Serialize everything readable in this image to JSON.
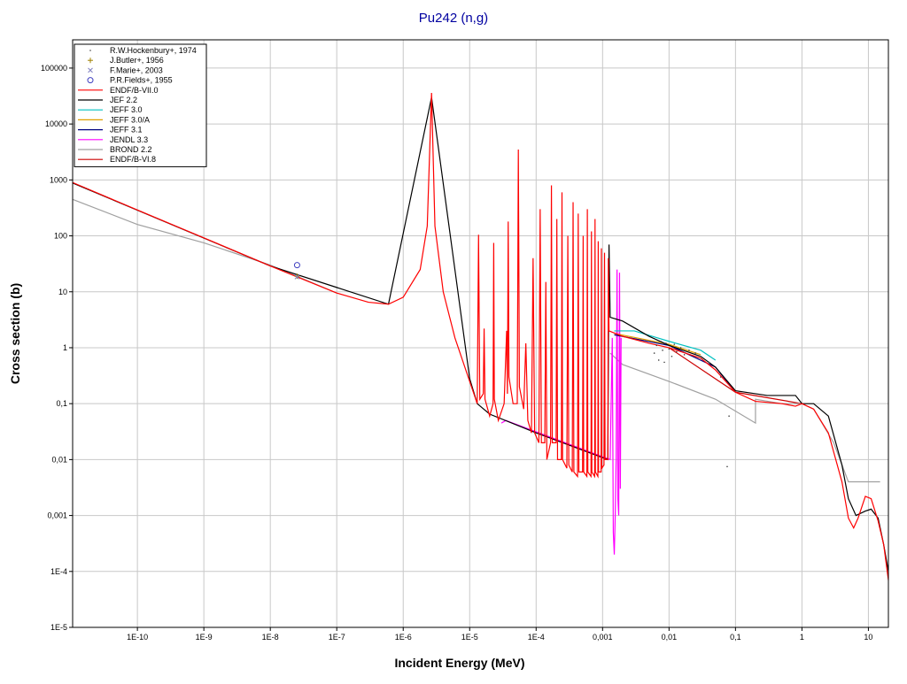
{
  "chart_data": {
    "type": "line",
    "title": "Pu242 (n,g)",
    "x_label": "Incident Energy (MeV)",
    "y_label": "Cross section (b)",
    "log_x": true,
    "log_y": true,
    "grid": true,
    "xlim": [
      1.06e-11,
      20
    ],
    "ylim": [
      1e-05,
      320000
    ],
    "xticks": [
      {
        "value": 1e-10,
        "label": "1E-10"
      },
      {
        "value": 1e-09,
        "label": "1E-9"
      },
      {
        "value": 1e-08,
        "label": "1E-8"
      },
      {
        "value": 1e-07,
        "label": "1E-7"
      },
      {
        "value": 1e-06,
        "label": "1E-6"
      },
      {
        "value": 1e-05,
        "label": "1E-5"
      },
      {
        "value": 0.0001,
        "label": "1E-4"
      },
      {
        "value": 0.001,
        "label": "0,001"
      },
      {
        "value": 0.01,
        "label": "0,01"
      },
      {
        "value": 0.1,
        "label": "0,1"
      },
      1,
      10
    ],
    "yticks": [
      {
        "value": 1e-05,
        "label": "1E-5"
      },
      {
        "value": 0.0001,
        "label": "1E-4"
      },
      {
        "value": 0.001,
        "label": "0,001"
      },
      {
        "value": 0.01,
        "label": "0,01"
      },
      {
        "value": 0.1,
        "label": "0,1"
      },
      1,
      10,
      100,
      1000,
      10000,
      100000
    ],
    "legend": "top-left",
    "series": [
      {
        "name": "R.W.Hockenbury+, 1974",
        "kind": "scatter",
        "marker": "dot",
        "color": "#404040",
        "x": [
          0.006,
          0.0065,
          0.007,
          0.0075,
          0.008,
          0.0085,
          0.009,
          0.01,
          0.011,
          0.012,
          0.013,
          0.015,
          0.017,
          0.02,
          0.025,
          0.03,
          0.04,
          0.06,
          0.08,
          0.075
        ],
        "values": [
          0.8,
          1.1,
          0.6,
          1.3,
          0.9,
          0.55,
          1.2,
          0.95,
          0.7,
          1.15,
          0.85,
          1.0,
          0.75,
          0.9,
          0.8,
          0.7,
          0.55,
          0.3,
          0.06,
          0.0075
        ]
      },
      {
        "name": "J.Butler+, 1956",
        "kind": "scatter",
        "marker": "plus",
        "color": "#a08000",
        "x": [
          2.53e-08
        ],
        "values": [
          19
        ]
      },
      {
        "name": "F.Marie+, 2003",
        "kind": "scatter",
        "marker": "cross",
        "color": "#8080c0",
        "x": [
          2.53e-08
        ],
        "values": [
          18.5
        ]
      },
      {
        "name": "P.R.Fields+, 1955",
        "kind": "scatter",
        "marker": "circle",
        "color": "#4040c0",
        "x": [
          2.53e-08
        ],
        "values": [
          30
        ]
      },
      {
        "name": "ENDF/B-VII.0",
        "kind": "line",
        "color": "#ff0000",
        "x": [
          1.06e-11,
          1e-10,
          1e-09,
          1e-08,
          1e-07,
          3e-07,
          6e-07,
          1e-06,
          1.8e-06,
          2.3e-06,
          2.67e-06,
          3e-06,
          4e-06,
          6e-06,
          1e-05,
          1.3e-05,
          1.36e-05,
          1.42e-05,
          1.6e-05,
          1.65e-05,
          1.7e-05,
          2e-05,
          2.25e-05,
          2.3e-05,
          2.35e-05,
          2.7e-05,
          3.3e-05,
          3.6e-05,
          3.7e-05,
          3.8e-05,
          3.9e-05,
          4.5e-05,
          5.2e-05,
          5.4e-05,
          5.6e-05,
          6.5e-05,
          7e-05,
          7.5e-05,
          8.5e-05,
          9e-05,
          9.5e-05,
          0.00011,
          0.000115,
          0.00012,
          0.000135,
          0.00014,
          0.000145,
          0.000165,
          0.00017,
          0.000175,
          0.0002,
          0.000205,
          0.00021,
          0.00024,
          0.000245,
          0.00025,
          0.00029,
          0.0003,
          0.00031,
          0.00035,
          0.00036,
          0.00037,
          0.00042,
          0.00043,
          0.00044,
          0.0005,
          0.00051,
          0.00052,
          0.00058,
          0.00059,
          0.0006,
          0.00067,
          0.00068,
          0.00069,
          0.00076,
          0.00077,
          0.00078,
          0.00085,
          0.00086,
          0.00087,
          0.00095,
          0.00096,
          0.00097,
          0.00105,
          0.00107,
          0.00109,
          0.0012,
          0.00122,
          0.00125,
          0.002,
          0.005,
          0.01,
          0.03,
          0.05,
          0.1,
          0.2,
          0.5,
          0.8,
          1,
          1.5,
          2.5,
          4,
          5,
          6,
          7,
          9,
          11,
          14,
          17,
          20
        ],
        "values": [
          900,
          290,
          92,
          29,
          9.5,
          6.5,
          6,
          8,
          25,
          150,
          36000,
          150,
          10,
          1.5,
          0.25,
          0.1,
          105,
          0.12,
          0.15,
          2.2,
          0.12,
          0.06,
          0.1,
          75,
          0.12,
          0.05,
          0.1,
          2,
          0.15,
          180,
          0.3,
          0.1,
          0.1,
          3500,
          0.2,
          0.08,
          1.2,
          0.05,
          0.03,
          40,
          0.03,
          0.02,
          300,
          0.02,
          0.02,
          15,
          0.01,
          0.02,
          800,
          0.02,
          0.02,
          200,
          0.01,
          0.01,
          600,
          0.01,
          0.007,
          100,
          0.008,
          0.006,
          400,
          0.006,
          0.005,
          250,
          0.006,
          0.006,
          100,
          0.006,
          0.005,
          300,
          0.006,
          0.005,
          120,
          0.006,
          0.005,
          200,
          0.006,
          0.005,
          80,
          0.006,
          0.006,
          60,
          0.007,
          0.008,
          50,
          0.01,
          0.01,
          40,
          2,
          1.6,
          1.2,
          1.0,
          0.65,
          0.4,
          0.16,
          0.11,
          0.1,
          0.09,
          0.1,
          0.08,
          0.03,
          0.004,
          0.0009,
          0.0006,
          0.0009,
          0.0022,
          0.002,
          0.0008,
          0.0003,
          7e-05
        ]
      },
      {
        "name": "JEF 2.2",
        "kind": "line",
        "color": "#000000",
        "x": [
          1.06e-11,
          1e-08,
          6e-07,
          2.67e-06,
          1e-05,
          1.3e-05,
          2e-05,
          0.0001,
          0.0012,
          0.00125,
          0.0013,
          0.002,
          0.005,
          0.01,
          0.03,
          0.05,
          0.1,
          0.3,
          0.8,
          1,
          1.5,
          2.5,
          4,
          5,
          6.5,
          9,
          11,
          14,
          17,
          20
        ],
        "values": [
          880,
          29,
          6,
          30000,
          0.28,
          0.1,
          0.065,
          0.03,
          0.01,
          70,
          3.5,
          3,
          1.6,
          1.1,
          0.7,
          0.45,
          0.17,
          0.14,
          0.14,
          0.1,
          0.1,
          0.06,
          0.008,
          0.002,
          0.001,
          0.0012,
          0.0013,
          0.0009,
          0.0003,
          0.0001
        ]
      },
      {
        "name": "JEFF 3.0",
        "kind": "line",
        "color": "#00c0c0",
        "x": [
          0.0015,
          0.003,
          0.01,
          0.03,
          0.05
        ],
        "values": [
          2,
          2,
          1.3,
          0.9,
          0.6
        ]
      },
      {
        "name": "JEFF 3.0/A",
        "kind": "line",
        "color": "#e0a000",
        "x": [
          0.0015,
          0.01,
          0.03
        ],
        "values": [
          1.8,
          1.15,
          0.75
        ]
      },
      {
        "name": "JEFF 3.1",
        "kind": "line",
        "color": "#000080",
        "x": [
          0.0015,
          0.01,
          0.05,
          0.1
        ],
        "values": [
          1.7,
          1.1,
          0.45,
          0.16
        ]
      },
      {
        "name": "JENDL 3.3",
        "kind": "line",
        "color": "#ff00ff",
        "x": [
          3e-05,
          3.5e-05,
          0.0013,
          0.0014,
          0.00145,
          0.0015,
          0.00155,
          0.0016,
          0.00165,
          0.0017,
          0.00175,
          0.0018,
          0.00185,
          0.0019
        ],
        "values": [
          0.045,
          0.05,
          0.01,
          1.5,
          0.0005,
          0.0002,
          0.001,
          0.01,
          25,
          0.002,
          0.001,
          22,
          0.003,
          1.5
        ]
      },
      {
        "name": "BROND 2.2",
        "kind": "line",
        "color": "#a0a0a0",
        "x": [
          1.06e-11,
          1e-10,
          1e-09,
          1e-08,
          1e-07,
          1e-05,
          0.0013,
          0.002,
          0.01,
          0.05,
          0.2,
          0.2,
          0.5,
          1,
          1.5,
          3,
          5,
          15
        ],
        "values": [
          450,
          160,
          75,
          30,
          9.5,
          null,
          0.8,
          0.5,
          0.25,
          0.12,
          0.045,
          0.12,
          0.1,
          0.1,
          0.08,
          0.02,
          0.004,
          0.004
        ]
      },
      {
        "name": "ENDF/B-VI.8",
        "kind": "line",
        "color": "#cc0000",
        "x": [
          0.01,
          0.1,
          1
        ],
        "values": [
          1.0,
          0.16,
          0.1
        ]
      }
    ]
  }
}
